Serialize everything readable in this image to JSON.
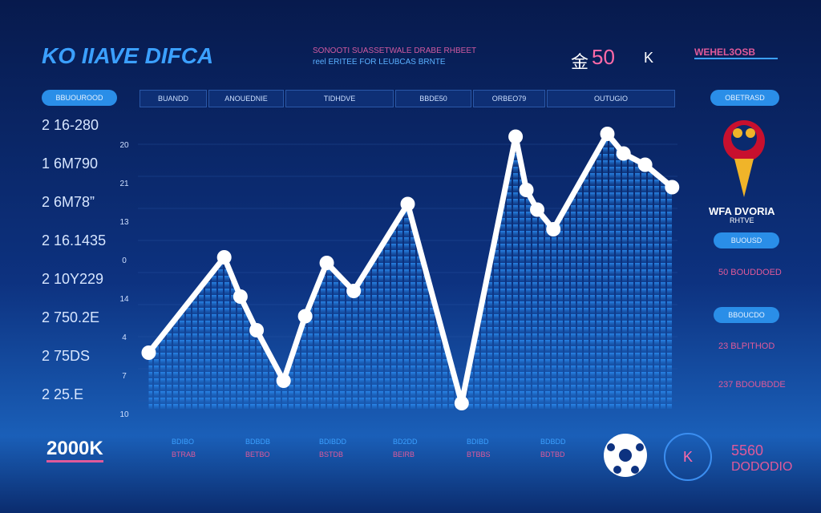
{
  "header": {
    "logo": "KO IIAVE DIFCA",
    "subtitle": [
      "SONOOTI SUASSETWALE DRABE RHBEET",
      "reel ERITEE FOR LEUBCAS BRNTE"
    ],
    "icon": "金",
    "score": "50",
    "mark": "K",
    "tag": "WEHEL3OSB"
  },
  "left_pill": "BBUOUROOD",
  "tabs": [
    "BUANDD",
    "ANOUEDNIE",
    "TIDHDVE",
    "BBDE50",
    "ORBEO79",
    "OUTUGIO",
    "OBETRASD"
  ],
  "right_pill": "OBETRASD",
  "stats": [
    "2 16-280",
    "1 6M790",
    "2 6M78”",
    "2 16.1435",
    "2 10Y229",
    "2 750.2E",
    "2 75DS",
    "2 25.E"
  ],
  "chart_data": {
    "type": "line",
    "axis_labels": [
      "20",
      "21",
      "13",
      "0",
      "14",
      "4",
      "7",
      "10"
    ],
    "x": [
      2,
      16,
      19,
      22,
      27,
      31,
      35,
      40,
      50,
      60,
      70,
      72,
      74,
      77,
      87,
      90,
      94,
      99
    ],
    "values": [
      20,
      54,
      40,
      28,
      10,
      33,
      52,
      42,
      73,
      2,
      97,
      78,
      71,
      64,
      98,
      91,
      87,
      79
    ],
    "xlim": [
      0,
      100
    ],
    "ylim": [
      0,
      100
    ],
    "color": "#ffffff"
  },
  "side": {
    "logo_text": [
      "WFA DVORIA",
      "RHTVE"
    ],
    "pills": [
      "BUOUSD",
      "BBOUCDO"
    ],
    "rows": [
      "50 BOUDDOED",
      "23 BLPITHOD",
      "237 BDOUBDDE"
    ]
  },
  "footer": {
    "total": "2000K",
    "items": [
      {
        "label": "BDIBO",
        "value": "BTRAB"
      },
      {
        "label": "BDBDB",
        "value": "BETBO"
      },
      {
        "label": "BDIBDD",
        "value": "BSTDB"
      },
      {
        "label": "BD2DD",
        "value": "BEIRB"
      },
      {
        "label": "BDIBD",
        "value": "BTBBS"
      },
      {
        "label": "BDBDD",
        "value": "BDTBD"
      }
    ],
    "badge": "K",
    "score": "5560",
    "caption": "DODODIO"
  }
}
